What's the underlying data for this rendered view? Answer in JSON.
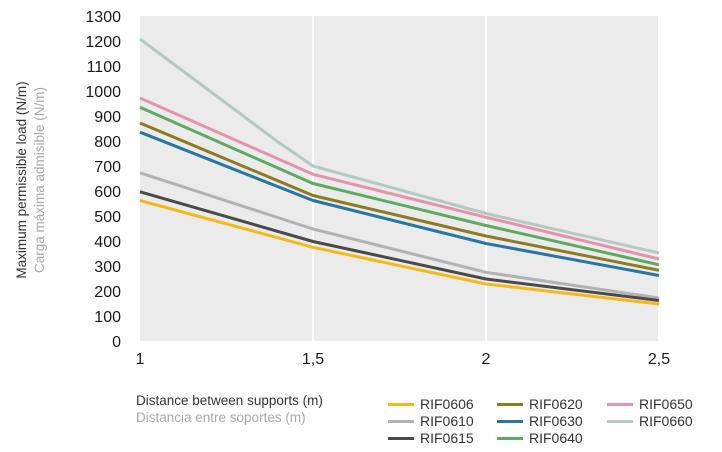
{
  "chart_data": {
    "type": "line",
    "xlabel": "Distance between supports (m)",
    "xlabel_es": "Distancia entre soportes (m)",
    "ylabel": "Maximum permissible load (N/m)",
    "ylabel_es": "Carga máxima admisible (N/m)",
    "x": [
      1,
      1.5,
      2,
      2.5
    ],
    "x_ticks": [
      "1",
      "1,5",
      "2",
      "2,5"
    ],
    "y_ticks": [
      "0",
      "100",
      "200",
      "300",
      "400",
      "500",
      "600",
      "700",
      "800",
      "900",
      "1000",
      "1100",
      "1200",
      "1300"
    ],
    "ylim": [
      0,
      1300
    ],
    "xlim": [
      1,
      2.5
    ],
    "grid": "vertical",
    "background": "#ebebeb",
    "legend_position": "bottom-right",
    "series": [
      {
        "name": "RIF0606",
        "color": "#f5b819",
        "values": [
          562,
          375,
          228,
          148
        ]
      },
      {
        "name": "RIF0610",
        "color": "#b2b2b2",
        "values": [
          673,
          448,
          275,
          172
        ]
      },
      {
        "name": "RIF0615",
        "color": "#4a4a4a",
        "values": [
          597,
          398,
          248,
          162
        ]
      },
      {
        "name": "RIF0620",
        "color": "#8c7b23",
        "values": [
          872,
          582,
          420,
          283
        ]
      },
      {
        "name": "RIF0630",
        "color": "#2777a3",
        "values": [
          835,
          562,
          390,
          262
        ]
      },
      {
        "name": "RIF0640",
        "color": "#5eaa62",
        "values": [
          935,
          630,
          462,
          305
        ]
      },
      {
        "name": "RIF0650",
        "color": "#e394ab",
        "values": [
          972,
          667,
          495,
          328
        ]
      },
      {
        "name": "RIF0660",
        "color": "#b4c9c0",
        "points": [
          [
            1,
            1208
          ],
          [
            1.4,
            795
          ],
          [
            1.5,
            700
          ],
          [
            2,
            510
          ],
          [
            2.5,
            352
          ]
        ]
      }
    ]
  }
}
